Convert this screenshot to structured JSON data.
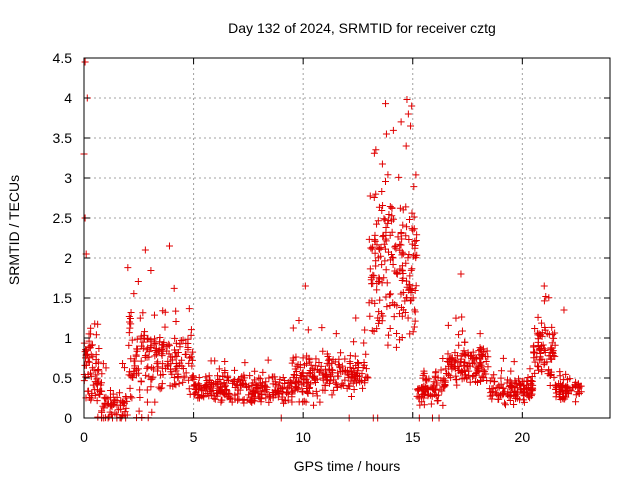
{
  "chart_data": {
    "type": "scatter",
    "title": "Day 132 of 2024, SRMTID for receiver cztg",
    "xlabel": "GPS time / hours",
    "ylabel": "SRMTID / TECUs",
    "xlim": [
      0,
      24
    ],
    "ylim": [
      0,
      4.5
    ],
    "x_ticks": [
      0,
      5,
      10,
      15,
      20
    ],
    "x_tick_labels": [
      "0",
      "5",
      "10",
      "15",
      "20"
    ],
    "y_ticks": [
      0,
      0.5,
      1,
      1.5,
      2,
      2.5,
      3,
      3.5,
      4,
      4.5
    ],
    "y_tick_labels": [
      "0",
      "0.5",
      "1",
      "1.5",
      "2",
      "2.5",
      "3",
      "3.5",
      "4",
      "4.5"
    ],
    "grid": true,
    "marker": "+",
    "series": [
      {
        "name": "SRMTID",
        "color": "#e00000",
        "segments": [
          {
            "x_start": 0.0,
            "x_end": 0.7,
            "base": 0.6,
            "spread": 0.7,
            "points": 60
          },
          {
            "x_start": 0.6,
            "x_end": 2.0,
            "base": 0.15,
            "spread": 0.35,
            "points": 70
          },
          {
            "x_start": 2.0,
            "x_end": 3.3,
            "base": 0.7,
            "spread": 0.9,
            "points": 90
          },
          {
            "x_start": 3.3,
            "x_end": 5.0,
            "base": 0.7,
            "spread": 0.6,
            "points": 110
          },
          {
            "x_start": 5.0,
            "x_end": 9.5,
            "base": 0.35,
            "spread": 0.25,
            "points": 260
          },
          {
            "x_start": 9.5,
            "x_end": 11.0,
            "base": 0.5,
            "spread": 0.45,
            "points": 100
          },
          {
            "x_start": 11.0,
            "x_end": 13.0,
            "base": 0.55,
            "spread": 0.35,
            "points": 110
          },
          {
            "x_start": 13.0,
            "x_end": 15.2,
            "base": 1.9,
            "spread": 1.4,
            "points": 200
          },
          {
            "x_start": 15.2,
            "x_end": 16.5,
            "base": 0.35,
            "spread": 0.3,
            "points": 80
          },
          {
            "x_start": 16.5,
            "x_end": 18.5,
            "base": 0.65,
            "spread": 0.4,
            "points": 130
          },
          {
            "x_start": 18.5,
            "x_end": 20.5,
            "base": 0.35,
            "spread": 0.25,
            "points": 120
          },
          {
            "x_start": 20.5,
            "x_end": 21.5,
            "base": 0.8,
            "spread": 0.5,
            "points": 80
          },
          {
            "x_start": 21.5,
            "x_end": 22.7,
            "base": 0.35,
            "spread": 0.2,
            "points": 70
          }
        ],
        "outliers": [
          {
            "x": 0.05,
            "y": 4.45
          },
          {
            "x": 0.15,
            "y": 4.0
          },
          {
            "x": 0.0,
            "y": 3.3
          },
          {
            "x": 0.05,
            "y": 2.5
          },
          {
            "x": 0.1,
            "y": 2.05
          },
          {
            "x": 3.9,
            "y": 2.15
          },
          {
            "x": 2.8,
            "y": 2.1
          },
          {
            "x": 2.0,
            "y": 1.88
          },
          {
            "x": 13.8,
            "y": 3.55
          },
          {
            "x": 14.8,
            "y": 3.8
          },
          {
            "x": 14.9,
            "y": 3.65
          },
          {
            "x": 14.7,
            "y": 3.4
          },
          {
            "x": 10.1,
            "y": 1.65
          },
          {
            "x": 12.4,
            "y": 1.25
          },
          {
            "x": 17.2,
            "y": 1.8
          },
          {
            "x": 21.0,
            "y": 1.65
          },
          {
            "x": 21.9,
            "y": 1.35
          }
        ]
      }
    ]
  }
}
